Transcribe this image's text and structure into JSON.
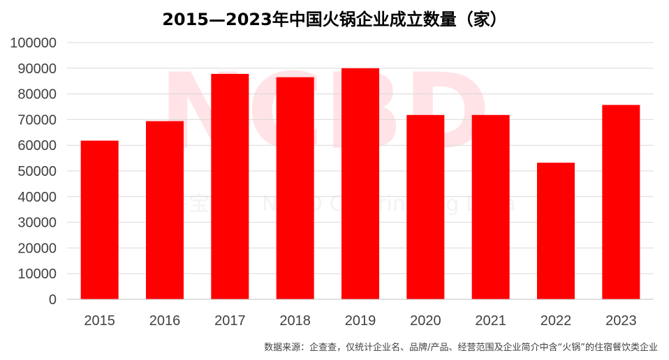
{
  "chart_data": {
    "type": "bar",
    "title": "2015—2023年中国火锅企业成立数量（家）",
    "categories": [
      "2015",
      "2016",
      "2017",
      "2018",
      "2019",
      "2020",
      "2021",
      "2022",
      "2023"
    ],
    "values": [
      61800,
      69400,
      87800,
      86500,
      90000,
      71800,
      71800,
      53200,
      75700
    ],
    "ylim": [
      0,
      100000
    ],
    "yticks": [
      0,
      10000,
      20000,
      30000,
      40000,
      50000,
      60000,
      70000,
      80000,
      90000,
      100000
    ],
    "xlabel": "",
    "ylabel": "",
    "grid": true,
    "legend": "none",
    "bar_color": "#ff0000",
    "gridline_color": "#d9d9d9"
  },
  "watermark": {
    "main": "NCBD",
    "sub_cn": "餐宝",
    "sub_en": "NCBD Catering Big Data"
  },
  "source_note": "数据来源：企查查，仅统计企业名、品牌/产品、经营范围及企业简介中含“火锅”的住宿餐饮类企业"
}
